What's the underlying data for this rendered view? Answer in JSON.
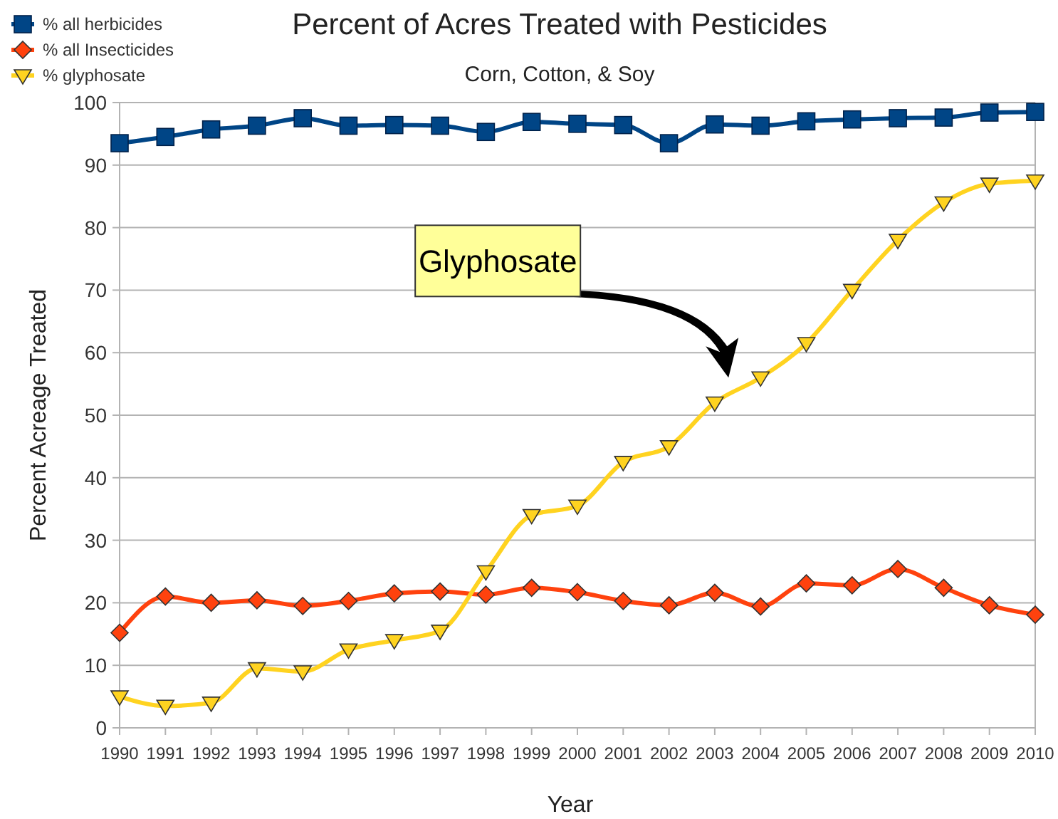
{
  "chart_data": {
    "type": "line",
    "title": "Percent of Acres Treated with Pesticides",
    "subtitle": "Corn, Cotton, & Soy",
    "xlabel": "Year",
    "ylabel": "Percent Acreage Treated",
    "x": [
      1990,
      1991,
      1992,
      1993,
      1994,
      1995,
      1996,
      1997,
      1998,
      1999,
      2000,
      2001,
      2002,
      2003,
      2004,
      2005,
      2006,
      2007,
      2008,
      2009,
      2010
    ],
    "series": [
      {
        "name": "% all herbicides",
        "color": "#004586",
        "marker": "square",
        "values": [
          93.5,
          94.5,
          95.7,
          96.3,
          97.5,
          96.3,
          96.4,
          96.3,
          95.3,
          96.9,
          96.6,
          96.4,
          93.5,
          96.5,
          96.3,
          97,
          97.3,
          97.5,
          97.6,
          98.4,
          98.5
        ]
      },
      {
        "name": "% all Insecticides",
        "color": "#ff420e",
        "marker": "diamond",
        "values": [
          15.2,
          21,
          20,
          20.4,
          19.5,
          20.3,
          21.5,
          21.8,
          21.3,
          22.4,
          21.7,
          20.3,
          19.6,
          21.6,
          19.4,
          23.1,
          22.8,
          25.4,
          22.4,
          19.6,
          18.1
        ]
      },
      {
        "name": "% glyphosate",
        "color": "#ffd320",
        "marker": "triangle",
        "values": [
          5,
          3.5,
          4,
          9.5,
          9,
          12.5,
          14,
          15.5,
          25,
          34,
          35.5,
          42.5,
          45,
          52,
          56,
          61.5,
          70,
          78,
          84,
          87,
          87.5
        ]
      }
    ],
    "xlim": [
      1990,
      2010
    ],
    "xticks": [
      1990,
      1991,
      1992,
      1993,
      1994,
      1995,
      1996,
      1997,
      1998,
      1999,
      2000,
      2001,
      2002,
      2003,
      2004,
      2005,
      2006,
      2007,
      2008,
      2009,
      2010
    ],
    "ylim": [
      0,
      100
    ],
    "yticks": [
      0,
      10,
      20,
      30,
      40,
      50,
      60,
      70,
      80,
      90,
      100
    ],
    "grid": "y",
    "legend": "top left",
    "annotations": [
      "Glyphosate"
    ]
  }
}
